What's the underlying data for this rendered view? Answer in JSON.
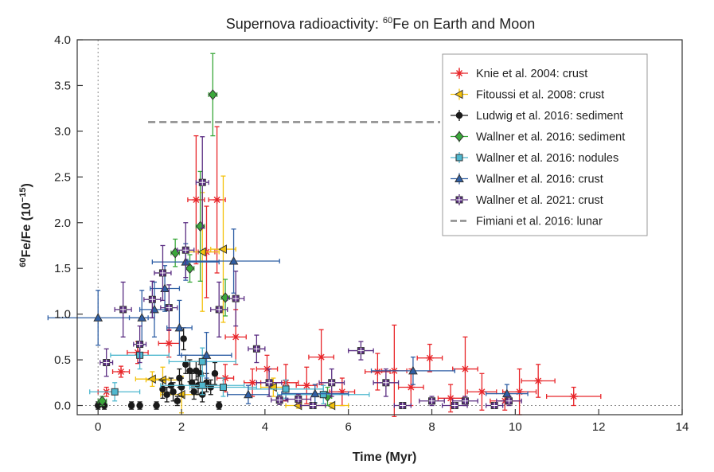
{
  "chart_data": {
    "type": "scatter",
    "title": {
      "prefix": "Supernova radioactivity: ",
      "sup": "60",
      "suffix": "Fe on Earth and Moon"
    },
    "xlabel": "Time (Myr)",
    "ylabel": {
      "sup": "60",
      "main": "Fe/Fe (10",
      "exp": "−15",
      "close": ")"
    },
    "xlim": [
      -0.5,
      14
    ],
    "ylim": [
      -0.1,
      4.0
    ],
    "xticks": [
      0,
      2,
      4,
      6,
      8,
      10,
      12,
      14
    ],
    "yticks": [
      0.0,
      0.5,
      1.0,
      1.5,
      2.0,
      2.5,
      3.0,
      3.5,
      4.0
    ],
    "ytick_labels": [
      "0.0",
      "0.5",
      "1.0",
      "1.5",
      "2.0",
      "2.5",
      "3.0",
      "3.5",
      "4.0"
    ],
    "legend_position": "top-right",
    "series": [
      {
        "name": "Knie et al. 2004: crust",
        "color": "#e8262a",
        "marker": "star",
        "points": [
          [
            0.2,
            0.15,
            0.2,
            0.05
          ],
          [
            0.55,
            0.37,
            0.2,
            0.06
          ],
          [
            0.95,
            0.58,
            0.25,
            0.12
          ],
          [
            1.7,
            0.68,
            0.25,
            0.15
          ],
          [
            2.35,
            2.25,
            0.2,
            0.7
          ],
          [
            2.6,
            1.68,
            0.2,
            0.5
          ],
          [
            2.85,
            2.25,
            0.2,
            0.8
          ],
          [
            3.05,
            0.3,
            0.2,
            0.15
          ],
          [
            3.3,
            0.75,
            0.25,
            0.3
          ],
          [
            3.7,
            0.25,
            0.2,
            0.15
          ],
          [
            4.05,
            0.4,
            0.25,
            0.15
          ],
          [
            4.5,
            0.25,
            0.3,
            0.2
          ],
          [
            5.0,
            0.22,
            0.25,
            0.2
          ],
          [
            5.35,
            0.53,
            0.3,
            0.3
          ],
          [
            5.85,
            0.15,
            0.3,
            0.15
          ],
          [
            6.7,
            0.37,
            0.3,
            0.2
          ],
          [
            7.1,
            0.38,
            0.3,
            0.5
          ],
          [
            7.5,
            0.2,
            0.3,
            0.2
          ],
          [
            7.95,
            0.52,
            0.3,
            0.15
          ],
          [
            8.45,
            0.08,
            0.3,
            0.15
          ],
          [
            8.8,
            0.4,
            0.3,
            0.35
          ],
          [
            9.2,
            0.15,
            0.35,
            0.2
          ],
          [
            9.75,
            0.05,
            0.35,
            0.1
          ],
          [
            10.1,
            0.15,
            0.4,
            0.25
          ],
          [
            10.55,
            0.27,
            0.4,
            0.18
          ],
          [
            11.4,
            0.1,
            0.65,
            0.1
          ]
        ]
      },
      {
        "name": "Fitoussi et al. 2008: crust",
        "color": "#f4c20d",
        "marker": "triangle-left",
        "points": [
          [
            1.3,
            0.29,
            0.4,
            0.08
          ],
          [
            1.55,
            0.28,
            0.4,
            0.14
          ],
          [
            2.0,
            0.12,
            0.5,
            0.2
          ],
          [
            2.5,
            1.68,
            0.4,
            0.65
          ],
          [
            3.0,
            1.71,
            0.3,
            0.8
          ],
          [
            4.2,
            0.2,
            0.3,
            0.1
          ],
          [
            4.8,
            0.0,
            0.3,
            0.03
          ],
          [
            5.6,
            0.0,
            0.4,
            0.03
          ]
        ]
      },
      {
        "name": "Ludwig et al. 2016: sediment",
        "color": "#1a1a1a",
        "marker": "circle",
        "points": [
          [
            0.0,
            0.0,
            0.05,
            0.04
          ],
          [
            0.15,
            0.0,
            0.05,
            0.04
          ],
          [
            0.8,
            0.0,
            0.05,
            0.04
          ],
          [
            1.0,
            0.0,
            0.05,
            0.04
          ],
          [
            1.4,
            0.0,
            0.05,
            0.04
          ],
          [
            1.55,
            0.18,
            0.05,
            0.1
          ],
          [
            1.65,
            0.12,
            0.05,
            0.08
          ],
          [
            1.75,
            0.22,
            0.05,
            0.08
          ],
          [
            1.8,
            0.15,
            0.05,
            0.1
          ],
          [
            1.9,
            0.05,
            0.05,
            0.05
          ],
          [
            1.95,
            0.3,
            0.05,
            0.1
          ],
          [
            2.0,
            0.2,
            0.05,
            0.1
          ],
          [
            2.05,
            0.73,
            0.05,
            0.12
          ],
          [
            2.1,
            0.45,
            0.05,
            0.1
          ],
          [
            2.2,
            0.38,
            0.05,
            0.12
          ],
          [
            2.25,
            0.25,
            0.05,
            0.1
          ],
          [
            2.3,
            0.15,
            0.05,
            0.08
          ],
          [
            2.35,
            0.38,
            0.05,
            0.1
          ],
          [
            2.4,
            0.22,
            0.05,
            0.1
          ],
          [
            2.45,
            0.35,
            0.05,
            0.1
          ],
          [
            2.5,
            0.12,
            0.05,
            0.08
          ],
          [
            2.6,
            0.25,
            0.05,
            0.1
          ],
          [
            2.7,
            0.2,
            0.05,
            0.08
          ],
          [
            2.8,
            0.35,
            0.05,
            0.12
          ],
          [
            2.9,
            0.0,
            0.05,
            0.04
          ]
        ]
      },
      {
        "name": "Wallner et al. 2016: sediment",
        "color": "#3aa83a",
        "marker": "diamond",
        "points": [
          [
            0.1,
            0.05,
            0.1,
            0.05
          ],
          [
            1.85,
            1.67,
            0.1,
            0.15
          ],
          [
            2.2,
            1.5,
            0.1,
            0.15
          ],
          [
            2.45,
            1.96,
            0.1,
            0.6
          ],
          [
            2.75,
            3.4,
            0.1,
            0.45
          ],
          [
            3.05,
            1.18,
            0.1,
            0.2
          ],
          [
            5.5,
            0.1,
            0.1,
            0.1
          ]
        ]
      },
      {
        "name": "Wallner et al. 2016: nodules",
        "color": "#4fb8cf",
        "marker": "square",
        "points": [
          [
            0.4,
            0.15,
            0.6,
            0.1
          ],
          [
            1.0,
            0.55,
            0.7,
            0.15
          ],
          [
            2.5,
            0.22,
            1.0,
            0.1
          ],
          [
            2.5,
            0.48,
            0.8,
            0.15
          ],
          [
            3.0,
            0.2,
            0.8,
            0.1
          ],
          [
            4.5,
            0.18,
            0.9,
            0.1
          ],
          [
            5.4,
            0.12,
            1.1,
            0.1
          ]
        ]
      },
      {
        "name": "Wallner et al. 2016: crust",
        "color": "#2f5fa5",
        "marker": "triangle-up",
        "points": [
          [
            0.0,
            0.96,
            1.2,
            0.3
          ],
          [
            1.05,
            0.96,
            0.3,
            0.3
          ],
          [
            1.35,
            1.05,
            0.35,
            0.3
          ],
          [
            1.6,
            1.28,
            0.35,
            0.25
          ],
          [
            1.95,
            0.85,
            0.3,
            0.3
          ],
          [
            2.1,
            1.57,
            0.8,
            0.2
          ],
          [
            2.6,
            0.55,
            0.6,
            0.25
          ],
          [
            3.25,
            1.58,
            1.1,
            0.35
          ],
          [
            3.6,
            0.12,
            0.5,
            0.1
          ],
          [
            5.2,
            0.13,
            0.8,
            0.1
          ],
          [
            7.55,
            0.38,
            1.0,
            0.15
          ],
          [
            9.8,
            0.13,
            0.5,
            0.1
          ]
        ]
      },
      {
        "name": "Wallner et al. 2021: crust",
        "color": "#5a2d82",
        "marker": "plus-square",
        "points": [
          [
            0.2,
            0.47,
            0.15,
            0.15
          ],
          [
            0.6,
            1.05,
            0.2,
            0.3
          ],
          [
            1.0,
            0.67,
            0.15,
            0.2
          ],
          [
            1.3,
            1.16,
            0.2,
            0.2
          ],
          [
            1.55,
            1.45,
            0.2,
            0.3
          ],
          [
            1.7,
            1.07,
            0.2,
            0.25
          ],
          [
            2.1,
            1.7,
            0.2,
            0.3
          ],
          [
            2.5,
            2.44,
            0.15,
            0.5
          ],
          [
            2.9,
            1.05,
            0.2,
            0.3
          ],
          [
            3.3,
            1.17,
            0.2,
            0.3
          ],
          [
            3.8,
            0.62,
            0.2,
            0.15
          ],
          [
            4.1,
            0.25,
            0.3,
            0.15
          ],
          [
            4.35,
            0.06,
            0.2,
            0.05
          ],
          [
            4.8,
            0.07,
            0.3,
            0.05
          ],
          [
            5.15,
            0.0,
            0.3,
            0.03
          ],
          [
            5.6,
            0.25,
            0.3,
            0.15
          ],
          [
            6.3,
            0.6,
            0.3,
            0.1
          ],
          [
            6.9,
            0.25,
            0.3,
            0.15
          ],
          [
            7.3,
            0.0,
            0.2,
            0.03
          ],
          [
            8.0,
            0.05,
            0.3,
            0.05
          ],
          [
            8.55,
            0.0,
            0.3,
            0.03
          ],
          [
            8.8,
            0.05,
            0.3,
            0.05
          ],
          [
            9.5,
            0.0,
            0.2,
            0.03
          ],
          [
            9.85,
            0.05,
            0.3,
            0.05
          ]
        ]
      },
      {
        "name": "Fimiani et al. 2016: lunar",
        "color": "#8c8c8c",
        "marker": "dashed-line",
        "segment": {
          "x": [
            1.2,
            8.2
          ],
          "y": 3.1
        }
      }
    ]
  }
}
